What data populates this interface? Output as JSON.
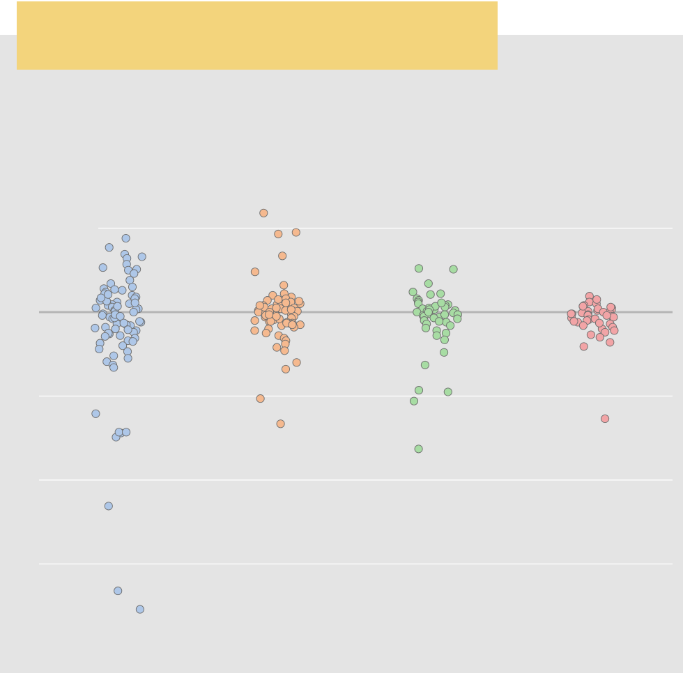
{
  "chart_data": {
    "type": "scatter",
    "title": "",
    "xlabel": "",
    "ylabel": "",
    "grid": true,
    "legend": "none",
    "ylim": [
      -3.5,
      1.6
    ],
    "yticks": [
      1,
      0,
      -1,
      -2,
      -3
    ],
    "reference_line": 0,
    "categories": [
      "",
      "",
      "",
      ""
    ],
    "title_bar_color": "#F3D47C",
    "panel_background": "#E4E4E4",
    "reference_line_color": "#B5B5B5",
    "series": [
      {
        "color": "#AEC7E8",
        "values": [
          0.88,
          0.77,
          0.69,
          0.66,
          0.64,
          0.57,
          0.53,
          0.51,
          0.5,
          0.46,
          0.38,
          0.34,
          0.3,
          0.28,
          0.26,
          0.24,
          0.22,
          0.2,
          0.18,
          0.16,
          0.14,
          0.12,
          0.1,
          0.09,
          0.08,
          0.06,
          0.04,
          0.03,
          0.02,
          0.01,
          0.0,
          -0.02,
          -0.04,
          -0.06,
          -0.08,
          -0.1,
          -0.12,
          -0.14,
          -0.16,
          -0.18,
          -0.2,
          -0.22,
          -0.24,
          -0.26,
          -0.28,
          -0.31,
          -0.34,
          -0.37,
          -0.4,
          -0.44,
          -0.47,
          -0.52,
          -0.55,
          -0.59,
          -0.63,
          -0.66,
          -0.07,
          -0.11,
          -0.03,
          0.05,
          0.13,
          0.17,
          -0.15,
          -0.19,
          -0.25,
          0.21,
          0.27,
          -0.29,
          -0.35,
          0.07,
          -0.05,
          0.11,
          -0.13,
          -0.21,
          -1.21,
          -1.44,
          -1.49,
          -1.43,
          -1.43,
          -2.31,
          -3.32,
          -3.54
        ]
      },
      {
        "color": "#F5B98F",
        "values": [
          1.18,
          0.93,
          0.95,
          0.67,
          0.48,
          0.32,
          0.22,
          0.2,
          0.18,
          0.16,
          0.14,
          0.12,
          0.1,
          0.09,
          0.08,
          0.07,
          0.06,
          0.05,
          0.04,
          0.03,
          0.02,
          0.01,
          0.0,
          -0.01,
          -0.02,
          -0.03,
          -0.04,
          -0.05,
          -0.06,
          -0.07,
          -0.08,
          -0.09,
          -0.1,
          -0.11,
          -0.12,
          -0.13,
          -0.14,
          -0.15,
          -0.16,
          -0.18,
          -0.2,
          -0.22,
          -0.25,
          -0.28,
          -0.31,
          -0.34,
          -0.38,
          -0.42,
          -0.46,
          -0.6,
          -0.68,
          -1.03,
          -1.33,
          0.06,
          0.02,
          -0.02,
          -0.06,
          0.11,
          -0.11,
          0.04,
          -0.04,
          0.0,
          0.08,
          -0.08,
          0.13,
          -0.13,
          0.15,
          -0.15,
          0.03,
          -0.03,
          0.05,
          -0.05
        ]
      },
      {
        "color": "#A7DCA3",
        "values": [
          0.52,
          0.51,
          0.34,
          0.24,
          0.22,
          0.21,
          0.16,
          0.14,
          0.12,
          0.1,
          0.09,
          0.08,
          0.06,
          0.05,
          0.04,
          0.03,
          0.02,
          0.01,
          0.0,
          -0.01,
          -0.02,
          -0.03,
          -0.04,
          -0.05,
          -0.06,
          -0.08,
          -0.1,
          -0.12,
          -0.14,
          -0.16,
          -0.19,
          -0.22,
          -0.25,
          -0.28,
          -0.33,
          -0.48,
          -0.63,
          -0.93,
          -0.95,
          -1.06,
          -1.63,
          0.07,
          -0.07,
          0.03,
          -0.03,
          0.11,
          -0.11,
          0.0
        ]
      },
      {
        "color": "#F2A4A6",
        "values": [
          0.19,
          0.12,
          0.1,
          0.08,
          0.05,
          0.03,
          0.02,
          0.01,
          0.0,
          -0.01,
          -0.02,
          -0.03,
          -0.04,
          -0.05,
          -0.06,
          -0.07,
          -0.09,
          -0.1,
          -0.12,
          -0.14,
          -0.16,
          -0.18,
          -0.2,
          -0.22,
          -0.24,
          -0.27,
          -0.3,
          -0.36,
          -0.41,
          -1.27,
          0.15,
          0.04,
          -0.08,
          -0.11,
          0.06,
          0.0,
          -0.02,
          -0.13,
          0.07,
          -0.04
        ]
      }
    ]
  }
}
